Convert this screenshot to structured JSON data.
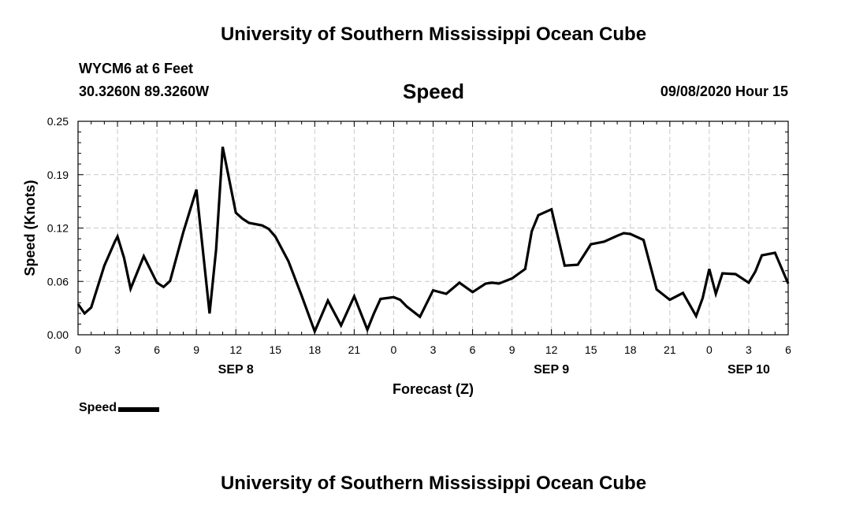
{
  "header": {
    "title_top": "University of Southern Mississippi Ocean Cube",
    "title_bottom": "University of Southern Mississippi Ocean Cube",
    "station": "WYCM6 at 6 Feet",
    "coords": "30.3260N 89.3260W",
    "plot_title": "Speed",
    "datetime": "09/08/2020 Hour 15"
  },
  "legend": {
    "label": "Speed"
  },
  "colors": {
    "line": "#000000",
    "grid": "#c8c8c8",
    "axis": "#000000"
  },
  "chart_data": {
    "type": "line",
    "title": "Speed",
    "xlabel": "Forecast (Z)",
    "ylabel": "Speed (Knots)",
    "xlim": [
      0,
      54
    ],
    "ylim": [
      0.0,
      0.25
    ],
    "grid": true,
    "legend_position": "bottom-left",
    "x_ticks": [
      0,
      3,
      6,
      9,
      12,
      15,
      18,
      21,
      24,
      27,
      30,
      33,
      36,
      39,
      42,
      45,
      48,
      51,
      54
    ],
    "x_tick_labels": [
      "0",
      "3",
      "6",
      "9",
      "12",
      "15",
      "18",
      "21",
      "0",
      "3",
      "6",
      "9",
      "12",
      "15",
      "18",
      "21",
      "0",
      "3",
      "6"
    ],
    "y_ticks": [
      0.0,
      0.0625,
      0.125,
      0.1875,
      0.25
    ],
    "y_tick_labels": [
      "0.00",
      "0.06",
      "0.12",
      "0.19",
      "0.25"
    ],
    "day_labels": [
      {
        "x": 12,
        "label": "SEP 8"
      },
      {
        "x": 36,
        "label": "SEP 9"
      },
      {
        "x": 51,
        "label": "SEP 10"
      }
    ],
    "series": [
      {
        "name": "Speed",
        "x": [
          0,
          0.5,
          1,
          2,
          2.8,
          3,
          3.5,
          4,
          5,
          6,
          6.5,
          7,
          8,
          9,
          10,
          10.5,
          11,
          12,
          12.5,
          13,
          14,
          14.5,
          15,
          16,
          17,
          18,
          19,
          20,
          21,
          22,
          22.5,
          23,
          24,
          24.5,
          25,
          26,
          27,
          28,
          29,
          30,
          31,
          31.5,
          32,
          33,
          34,
          34.5,
          35,
          36,
          37,
          38,
          39,
          40,
          41,
          41.5,
          42,
          43,
          44,
          45,
          46,
          47,
          47.5,
          48,
          48.5,
          49,
          50,
          51,
          51.5,
          52,
          53,
          54
        ],
        "y": [
          0.036,
          0.025,
          0.032,
          0.081,
          0.109,
          0.115,
          0.09,
          0.054,
          0.092,
          0.061,
          0.056,
          0.063,
          0.12,
          0.17,
          0.025,
          0.1,
          0.22,
          0.143,
          0.136,
          0.131,
          0.128,
          0.124,
          0.115,
          0.086,
          0.046,
          0.004,
          0.04,
          0.011,
          0.045,
          0.006,
          0.025,
          0.042,
          0.044,
          0.041,
          0.033,
          0.021,
          0.052,
          0.048,
          0.061,
          0.05,
          0.06,
          0.061,
          0.06,
          0.066,
          0.077,
          0.121,
          0.14,
          0.147,
          0.081,
          0.082,
          0.106,
          0.109,
          0.116,
          0.119,
          0.118,
          0.111,
          0.053,
          0.041,
          0.049,
          0.022,
          0.043,
          0.077,
          0.048,
          0.072,
          0.071,
          0.061,
          0.074,
          0.093,
          0.096,
          0.06
        ]
      }
    ]
  }
}
